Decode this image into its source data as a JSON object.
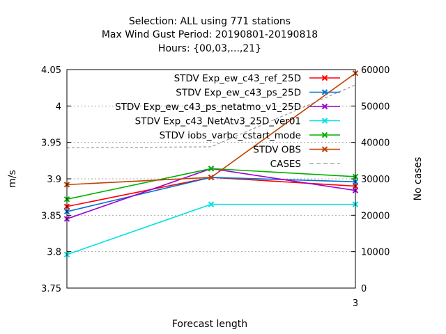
{
  "chart_data": {
    "type": "line",
    "title_lines": [
      "Selection: ALL using   771 stations",
      "Max Wind Gust   Period: 20190801-20190818",
      "Hours: {00,03,...,21}"
    ],
    "xlabel": "Forecast length",
    "ylabel": "m/s",
    "y2label": "No cases",
    "x": [
      0,
      1.5,
      3
    ],
    "x_tick_labels": [
      {
        "x": 3,
        "label": "3"
      }
    ],
    "xlim": [
      0,
      3
    ],
    "ylim": [
      3.75,
      4.05
    ],
    "y_ticks": [
      3.75,
      3.8,
      3.85,
      3.9,
      3.95,
      4.0,
      4.05
    ],
    "y_tick_labels": [
      "3.75",
      "3.8",
      "3.85",
      "3.9",
      "3.95",
      "4",
      "4.05"
    ],
    "y2lim": [
      0,
      60000
    ],
    "y2_ticks": [
      0,
      10000,
      20000,
      30000,
      40000,
      50000,
      60000
    ],
    "y2_tick_labels": [
      "0",
      "10000",
      "20000",
      "30000",
      "40000",
      "50000",
      "60000"
    ],
    "grid": "horizontal dotted",
    "legend_position": "top-right",
    "series": [
      {
        "name": "STDV Exp_ew_c43_ref_25D",
        "color": "#ff0000",
        "axis": "y",
        "style": "solid-x",
        "values": [
          3.862,
          3.902,
          3.89
        ]
      },
      {
        "name": "STDV Exp_ew_c43_ps_25D",
        "color": "#0072d0",
        "axis": "y",
        "style": "solid-x",
        "values": [
          3.855,
          3.902,
          3.896
        ]
      },
      {
        "name": "STDV Exp_ew_c43_ps_netatmo_v1_25D",
        "color": "#a000d0",
        "axis": "y",
        "style": "solid-x",
        "values": [
          3.845,
          3.914,
          3.884
        ]
      },
      {
        "name": "STDV Exp_c43_NetAtv3_25D_ver01",
        "color": "#00e0e0",
        "axis": "y",
        "style": "solid-x",
        "values": [
          3.796,
          3.865,
          3.865
        ]
      },
      {
        "name": "STDV iobs_varbc_cstart_mode",
        "color": "#00b000",
        "axis": "y",
        "style": "solid-x",
        "values": [
          3.872,
          3.914,
          3.903
        ]
      },
      {
        "name": "STDV OBS",
        "color": "#c04000",
        "axis": "y",
        "style": "solid-x",
        "values": [
          3.892,
          3.902,
          4.045
        ]
      },
      {
        "name": "CASES",
        "color": "#999999",
        "axis": "y2",
        "style": "dashed",
        "x": [
          0,
          1.5,
          3
        ],
        "values": [
          38500,
          38800,
          55800
        ]
      }
    ]
  }
}
